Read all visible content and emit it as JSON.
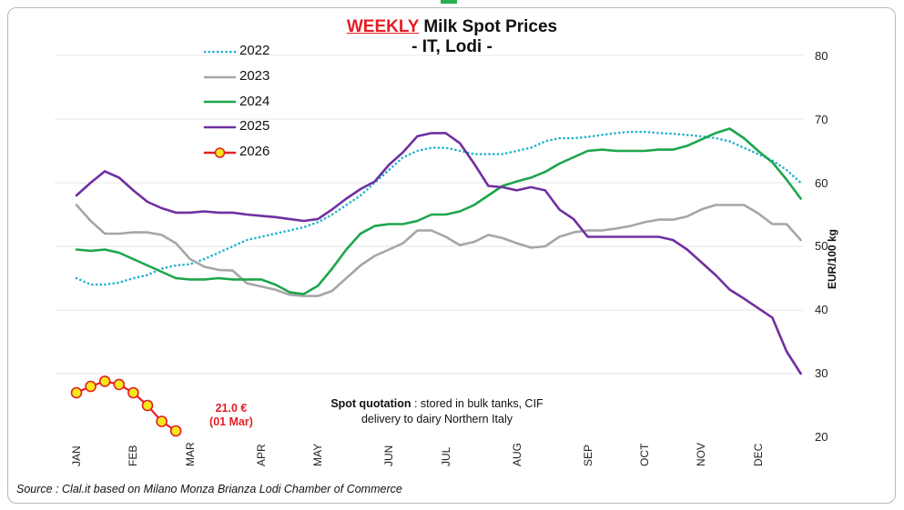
{
  "chart_data": {
    "type": "line",
    "title_highlight": "WEEKLY",
    "title_rest": "Milk Spot Prices",
    "subtitle": "- IT, Lodi -",
    "ylabel": "EUR/100 kg",
    "ylim": [
      20,
      80
    ],
    "yticks": [
      20,
      30,
      40,
      50,
      60,
      70,
      80
    ],
    "xlim": [
      0,
      52
    ],
    "months": [
      {
        "label": "JAN",
        "week": 0
      },
      {
        "label": "FEB",
        "week": 4
      },
      {
        "label": "MAR",
        "week": 8
      },
      {
        "label": "APR",
        "week": 13
      },
      {
        "label": "MAY",
        "week": 17
      },
      {
        "label": "JUN",
        "week": 22
      },
      {
        "label": "JUL",
        "week": 26
      },
      {
        "label": "AUG",
        "week": 31
      },
      {
        "label": "SEP",
        "week": 36
      },
      {
        "label": "OCT",
        "week": 40
      },
      {
        "label": "NOV",
        "week": 44
      },
      {
        "label": "DEC",
        "week": 48
      }
    ],
    "series": [
      {
        "name": "2022",
        "color": "#1fb2cf",
        "style": "dotted",
        "values": [
          45.0,
          44.0,
          44.0,
          44.3,
          45.0,
          45.5,
          46.5,
          47.0,
          47.2,
          48.0,
          49.0,
          50.0,
          51.0,
          51.5,
          52.0,
          52.5,
          53.0,
          53.8,
          55.0,
          56.5,
          58.0,
          60.0,
          62.0,
          64.0,
          65.0,
          65.5,
          65.5,
          65.0,
          64.5,
          64.5,
          64.5,
          65.0,
          65.5,
          66.5,
          67.0,
          67.0,
          67.2,
          67.5,
          67.8,
          68.0,
          68.0,
          67.8,
          67.7,
          67.5,
          67.3,
          67.0,
          66.5,
          65.5,
          64.5,
          63.5,
          62.0,
          60.0
        ]
      },
      {
        "name": "2023",
        "color": "#a6a6a6",
        "style": "solid",
        "values": [
          56.5,
          54.0,
          52.0,
          52.0,
          52.2,
          52.2,
          51.8,
          50.5,
          48.0,
          46.8,
          46.3,
          46.2,
          44.2,
          43.7,
          43.2,
          42.4,
          42.2,
          42.2,
          43.0,
          45.0,
          47.0,
          48.5,
          49.5,
          50.5,
          52.5,
          52.5,
          51.5,
          50.2,
          50.7,
          51.8,
          51.3,
          50.5,
          49.8,
          50.0,
          51.5,
          52.2,
          52.5,
          52.5,
          52.8,
          53.2,
          53.8,
          54.2,
          54.2,
          54.7,
          55.8,
          56.5,
          56.5,
          56.5,
          55.2,
          53.5,
          53.5,
          51.0
        ]
      },
      {
        "name": "2024",
        "color": "#1ca64c",
        "style": "solid",
        "values": [
          49.5,
          49.3,
          49.5,
          49.0,
          48.0,
          47.0,
          46.0,
          45.0,
          44.8,
          44.8,
          45.0,
          44.8,
          44.8,
          44.8,
          44.0,
          42.8,
          42.5,
          43.8,
          46.5,
          49.5,
          52.0,
          53.2,
          53.5,
          53.5,
          54.0,
          55.0,
          55.0,
          55.5,
          56.5,
          58.0,
          59.5,
          60.2,
          60.8,
          61.7,
          63.0,
          64.0,
          65.0,
          65.2,
          65.0,
          65.0,
          65.0,
          65.2,
          65.2,
          65.8,
          66.8,
          67.8,
          68.5,
          67.0,
          65.0,
          63.2,
          60.5,
          57.5
        ]
      },
      {
        "name": "2025",
        "color": "#7030a0",
        "style": "solid",
        "values": [
          58.0,
          60.0,
          61.8,
          60.8,
          58.8,
          57.0,
          56.0,
          55.3,
          55.3,
          55.5,
          55.3,
          55.3,
          55.0,
          54.8,
          54.6,
          54.3,
          54.0,
          54.3,
          55.8,
          57.5,
          59.0,
          60.2,
          62.8,
          64.8,
          67.3,
          67.8,
          67.8,
          66.2,
          63.0,
          59.5,
          59.3,
          58.8,
          59.3,
          58.8,
          55.8,
          54.3,
          51.5,
          51.5,
          51.5,
          51.5,
          51.5,
          51.5,
          51.0,
          49.5,
          47.5,
          45.5,
          43.2,
          41.8,
          40.3,
          38.8,
          33.5,
          30.0
        ]
      },
      {
        "name": "2026",
        "color": "#e31e24",
        "marker_fill": "#f7e81b",
        "style": "markers",
        "values": [
          27.0,
          28.0,
          28.8,
          28.3,
          27.0,
          25.0,
          22.5,
          21.0
        ]
      }
    ],
    "annotation": {
      "value": "21.0 €",
      "date": "(01 Mar)"
    },
    "note_bold": "Spot quotation",
    "note_rest": " : stored in bulk tanks, CIF",
    "note_line2": "delivery to dairy Northern Italy",
    "source": "Source : Clal.it based on Milano Monza Brianza Lodi Chamber of Commerce"
  }
}
